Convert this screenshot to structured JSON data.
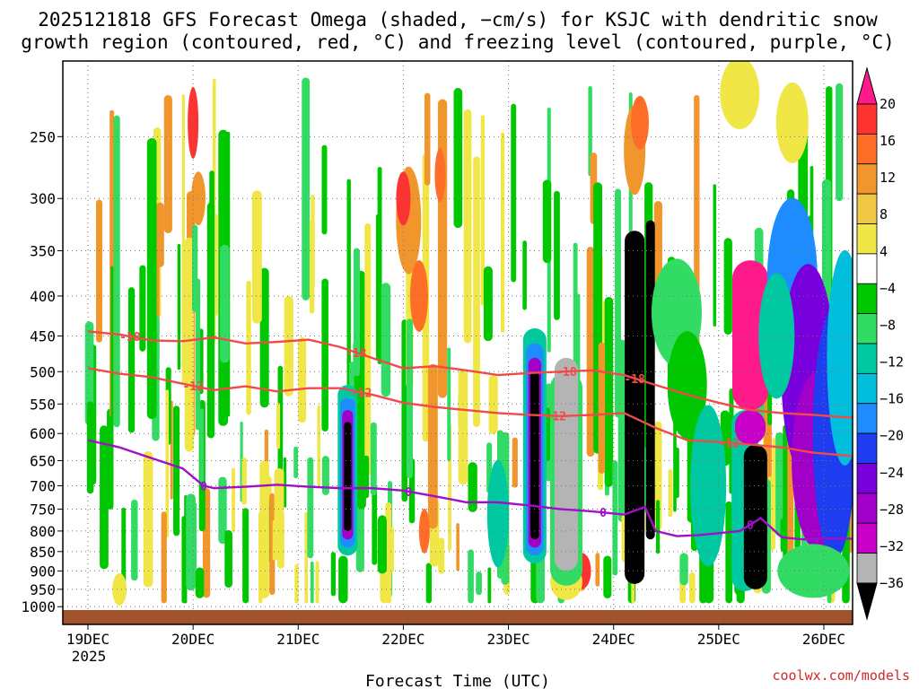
{
  "chart_data": {
    "type": "heatmap",
    "title_line1": "2025121818 GFS Forecast Omega (shaded, −cm/s) for KSJC with dendritic snow",
    "title_line2": "growth region (contoured, red, °C) and freezing level (contoured, purple, °C)",
    "xlabel": "Forecast Time (UTC)",
    "credit": "coolwx.com/models",
    "x_year_label": "2025",
    "x_range": [
      0,
      7.45
    ],
    "x_ticks": [
      {
        "x": 0,
        "label": "19DEC"
      },
      {
        "x": 1,
        "label": "20DEC"
      },
      {
        "x": 2,
        "label": "21DEC"
      },
      {
        "x": 3,
        "label": "22DEC"
      },
      {
        "x": 4,
        "label": "23DEC"
      },
      {
        "x": 5,
        "label": "24DEC"
      },
      {
        "x": 6,
        "label": "25DEC"
      },
      {
        "x": 7,
        "label": "26DEC"
      }
    ],
    "y_scale": "log-pressure",
    "y_range": [
      1010,
      200
    ],
    "y_ticks": [
      "250",
      "300",
      "350",
      "400",
      "450",
      "500",
      "550",
      "600",
      "650",
      "700",
      "750",
      "800",
      "850",
      "900",
      "950",
      "1000"
    ],
    "grid": true,
    "colorbar": {
      "labels": [
        "20",
        "16",
        "12",
        "8",
        "4",
        "−4",
        "−8",
        "−12",
        "−16",
        "−20",
        "−24",
        "−28",
        "−32",
        "−36"
      ],
      "colors": [
        "#ff1a8c",
        "#ff3232",
        "#ff6e28",
        "#f0962d",
        "#f0c846",
        "#f0e646",
        "#ffffff",
        "#00c800",
        "#32dc64",
        "#00c8a0",
        "#00bedc",
        "#1e8cff",
        "#1e3cf0",
        "#7800dc",
        "#a000c8",
        "#c800c8",
        "#b4b4b4",
        "#000000"
      ]
    },
    "series": [
      {
        "name": "-18",
        "color": "#f04a4a",
        "label_x": [
          0.4,
          2.55,
          4.55,
          5.2
        ],
        "x": [
          0,
          0.3,
          0.6,
          0.9,
          1.2,
          1.5,
          1.8,
          2.1,
          2.4,
          2.7,
          3.0,
          3.3,
          3.6,
          3.9,
          4.2,
          4.5,
          4.8,
          5.1,
          5.4,
          5.7,
          6.0,
          6.3,
          6.6,
          6.9,
          7.2,
          7.45
        ],
        "p": [
          444,
          448,
          456,
          457,
          452,
          460,
          458,
          455,
          465,
          480,
          495,
          492,
          498,
          505,
          502,
          500,
          498,
          505,
          520,
          535,
          548,
          560,
          565,
          568,
          572,
          572
        ]
      },
      {
        "name": "-12",
        "color": "#f04a4a",
        "label_x": [
          1.0,
          2.6,
          4.45,
          6.1
        ],
        "x": [
          0,
          0.3,
          0.6,
          0.9,
          1.2,
          1.5,
          1.8,
          2.1,
          2.4,
          2.7,
          3.0,
          3.3,
          3.6,
          3.9,
          4.2,
          4.5,
          4.8,
          5.1,
          5.4,
          5.7,
          6.0,
          6.3,
          6.6,
          6.9,
          7.2,
          7.45
        ],
        "p": [
          495,
          503,
          508,
          518,
          528,
          522,
          530,
          525,
          525,
          535,
          548,
          555,
          560,
          565,
          568,
          570,
          568,
          565,
          590,
          612,
          615,
          620,
          625,
          635,
          640,
          645
        ]
      },
      {
        "name": "0",
        "color": "#a010c8",
        "label_x": [
          1.1,
          3.05,
          4.9,
          6.3
        ],
        "x": [
          0,
          0.3,
          0.6,
          0.9,
          1.1,
          1.2,
          1.5,
          1.8,
          2.1,
          2.4,
          2.7,
          3.0,
          3.3,
          3.6,
          3.9,
          4.2,
          4.5,
          4.8,
          5.1,
          5.3,
          5.4,
          5.6,
          5.8,
          6.0,
          6.2,
          6.4,
          6.6,
          6.8,
          7.0,
          7.2,
          7.45
        ],
        "p": [
          612,
          625,
          645,
          665,
          700,
          705,
          702,
          698,
          702,
          705,
          705,
          710,
          722,
          735,
          735,
          742,
          750,
          755,
          762,
          745,
          800,
          812,
          810,
          805,
          800,
          770,
          815,
          820,
          818,
          818,
          820
        ]
      }
    ]
  }
}
